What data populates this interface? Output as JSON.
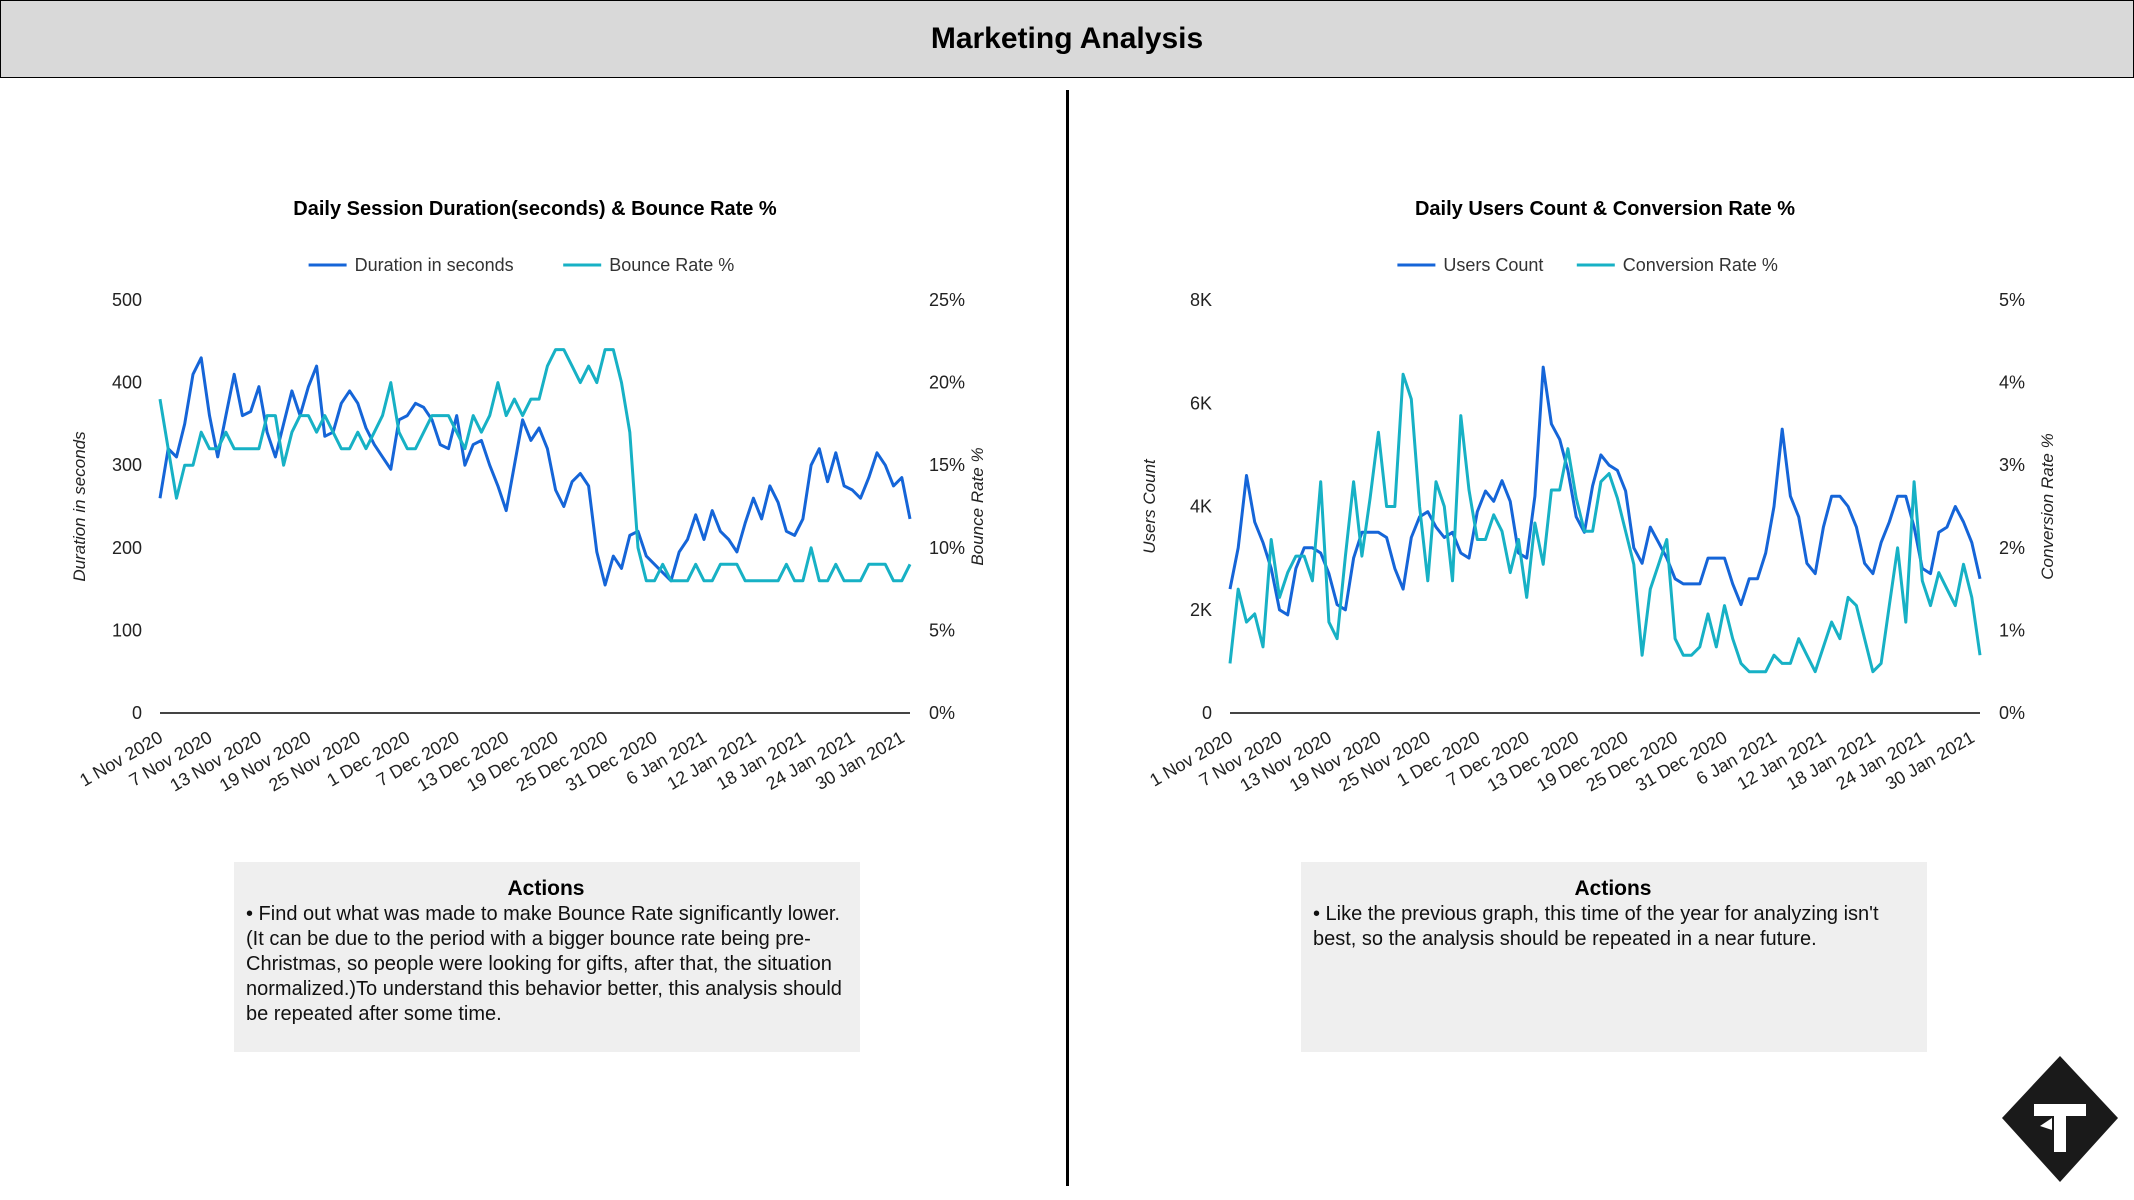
{
  "header": {
    "title": "Marketing Analysis"
  },
  "actions_left": {
    "title": "Actions",
    "text": "• Find out what was made to make Bounce Rate significantly lower. (It can be due to the period with a bigger bounce rate being pre-Christmas, so people were looking for gifts, after that, the situation normalized.)To understand this behavior better, this analysis should be repeated after some time."
  },
  "actions_right": {
    "title": "Actions",
    "text": "• Like the previous graph, this time of the year for analyzing isn't best, so the analysis should be repeated in a near future."
  },
  "colors": {
    "series1": "#1565d8",
    "series2": "#17b1c5",
    "header_bg": "#d9d9d9",
    "actions_bg": "#efefef"
  },
  "logo": {
    "icon": "t-diamond-logo"
  },
  "chart_data": [
    {
      "type": "line",
      "title": "Daily Session Duration(seconds) & Bounce Rate %",
      "legend_position": "top",
      "ylabel": "Duration in seconds",
      "y2label": "Bounce Rate %",
      "ylim": [
        0,
        500
      ],
      "y2lim": [
        0,
        25
      ],
      "yticks": [
        "0",
        "100",
        "200",
        "300",
        "400",
        "500"
      ],
      "y2ticks": [
        "0%",
        "5%",
        "10%",
        "15%",
        "20%",
        "25%"
      ],
      "xticks": [
        "1 Nov 2020",
        "7 Nov 2020",
        "13 Nov 2020",
        "19 Nov 2020",
        "25 Nov 2020",
        "1 Dec 2020",
        "7 Dec 2020",
        "13 Dec 2020",
        "19 Dec 2020",
        "25 Dec 2020",
        "31 Dec 2020",
        "6 Jan 2021",
        "12 Jan 2021",
        "18 Jan 2021",
        "24 Jan 2021",
        "30 Jan 2021"
      ],
      "x_start": "1 Nov 2020",
      "x_end": "31 Jan 2021",
      "series": [
        {
          "name": "Duration in seconds",
          "axis": "left",
          "values": [
            260,
            320,
            310,
            350,
            410,
            430,
            360,
            310,
            360,
            410,
            360,
            365,
            395,
            340,
            310,
            350,
            390,
            360,
            395,
            420,
            335,
            340,
            375,
            390,
            375,
            345,
            325,
            310,
            295,
            355,
            360,
            375,
            370,
            355,
            325,
            320,
            360,
            300,
            325,
            330,
            300,
            275,
            245,
            300,
            355,
            330,
            345,
            320,
            270,
            250,
            280,
            290,
            275,
            195,
            155,
            190,
            175,
            215,
            220,
            190,
            180,
            170,
            160,
            195,
            210,
            240,
            210,
            245,
            220,
            210,
            195,
            230,
            260,
            235,
            275,
            255,
            220,
            215,
            235,
            300,
            320,
            280,
            315,
            275,
            270,
            260,
            285,
            315,
            300,
            275,
            285,
            235
          ]
        },
        {
          "name": "Bounce Rate %",
          "axis": "right",
          "values": [
            19.0,
            16.0,
            13.0,
            15.0,
            15.0,
            17.0,
            16.0,
            16.0,
            17.0,
            16.0,
            16.0,
            16.0,
            16.0,
            18.0,
            18.0,
            15.0,
            17.0,
            18.0,
            18.0,
            17.0,
            18.0,
            17.0,
            16.0,
            16.0,
            17.0,
            16.0,
            17.0,
            18.0,
            20.0,
            17.0,
            16.0,
            16.0,
            17.0,
            18.0,
            18.0,
            18.0,
            17.0,
            16.0,
            18.0,
            17.0,
            18.0,
            20.0,
            18.0,
            19.0,
            18.0,
            19.0,
            19.0,
            21.0,
            22.0,
            22.0,
            21.0,
            20.0,
            21.0,
            20.0,
            22.0,
            22.0,
            20.0,
            17.0,
            10.0,
            8.0,
            8.0,
            9.0,
            8.0,
            8.0,
            8.0,
            9.0,
            8.0,
            8.0,
            9.0,
            9.0,
            9.0,
            8.0,
            8.0,
            8.0,
            8.0,
            8.0,
            9.0,
            8.0,
            8.0,
            10.0,
            8.0,
            8.0,
            9.0,
            8.0,
            8.0,
            8.0,
            9.0,
            9.0,
            9.0,
            8.0,
            8.0,
            9.0
          ]
        }
      ]
    },
    {
      "type": "line",
      "title": "Daily Users Count & Conversion Rate %",
      "legend_position": "top",
      "ylabel": "Users Count",
      "y2label": "Conversion Rate %",
      "ylim": [
        0,
        8000
      ],
      "y2lim": [
        0,
        5
      ],
      "yticks": [
        "0",
        "2K",
        "4K",
        "6K",
        "8K"
      ],
      "y2ticks": [
        "0%",
        "1%",
        "2%",
        "3%",
        "4%",
        "5%"
      ],
      "xticks": [
        "1 Nov 2020",
        "7 Nov 2020",
        "13 Nov 2020",
        "19 Nov 2020",
        "25 Nov 2020",
        "1 Dec 2020",
        "7 Dec 2020",
        "13 Dec 2020",
        "19 Dec 2020",
        "25 Dec 2020",
        "31 Dec 2020",
        "6 Jan 2021",
        "12 Jan 2021",
        "18 Jan 2021",
        "24 Jan 2021",
        "30 Jan 2021"
      ],
      "x_start": "1 Nov 2020",
      "x_end": "31 Jan 2021",
      "series": [
        {
          "name": "Users Count",
          "axis": "left",
          "values": [
            2400,
            3200,
            4600,
            3700,
            3300,
            2800,
            2000,
            1900,
            2800,
            3200,
            3200,
            3100,
            2700,
            2100,
            2000,
            3000,
            3500,
            3500,
            3500,
            3400,
            2800,
            2400,
            3400,
            3800,
            3900,
            3600,
            3400,
            3500,
            3100,
            3000,
            3900,
            4300,
            4100,
            4500,
            4100,
            3100,
            3000,
            4200,
            6700,
            5600,
            5300,
            4700,
            3800,
            3500,
            4400,
            5000,
            4800,
            4700,
            4300,
            3200,
            2900,
            3600,
            3300,
            3000,
            2600,
            2500,
            2500,
            2500,
            3000,
            3000,
            3000,
            2500,
            2100,
            2600,
            2600,
            3100,
            4000,
            5500,
            4200,
            3800,
            2900,
            2700,
            3600,
            4200,
            4200,
            4000,
            3600,
            2900,
            2700,
            3300,
            3700,
            4200,
            4200,
            3600,
            2800,
            2700,
            3500,
            3600,
            4000,
            3700,
            3300,
            2600
          ]
        },
        {
          "name": "Conversion Rate %",
          "axis": "right",
          "values": [
            0.6,
            1.5,
            1.1,
            1.2,
            0.8,
            2.1,
            1.4,
            1.7,
            1.9,
            1.9,
            1.6,
            2.8,
            1.1,
            0.9,
            1.9,
            2.8,
            1.9,
            2.6,
            3.4,
            2.5,
            2.5,
            4.1,
            3.8,
            2.5,
            1.6,
            2.8,
            2.5,
            1.6,
            3.6,
            2.7,
            2.1,
            2.1,
            2.4,
            2.2,
            1.7,
            2.1,
            1.4,
            2.3,
            1.8,
            2.7,
            2.7,
            3.2,
            2.6,
            2.2,
            2.2,
            2.8,
            2.9,
            2.6,
            2.2,
            1.8,
            0.7,
            1.5,
            1.8,
            2.1,
            0.9,
            0.7,
            0.7,
            0.8,
            1.2,
            0.8,
            1.3,
            0.9,
            0.6,
            0.5,
            0.5,
            0.5,
            0.7,
            0.6,
            0.6,
            0.9,
            0.7,
            0.5,
            0.8,
            1.1,
            0.9,
            1.4,
            1.3,
            0.9,
            0.5,
            0.6,
            1.3,
            2.0,
            1.1,
            2.8,
            1.6,
            1.3,
            1.7,
            1.5,
            1.3,
            1.8,
            1.4,
            0.7
          ]
        }
      ]
    }
  ]
}
